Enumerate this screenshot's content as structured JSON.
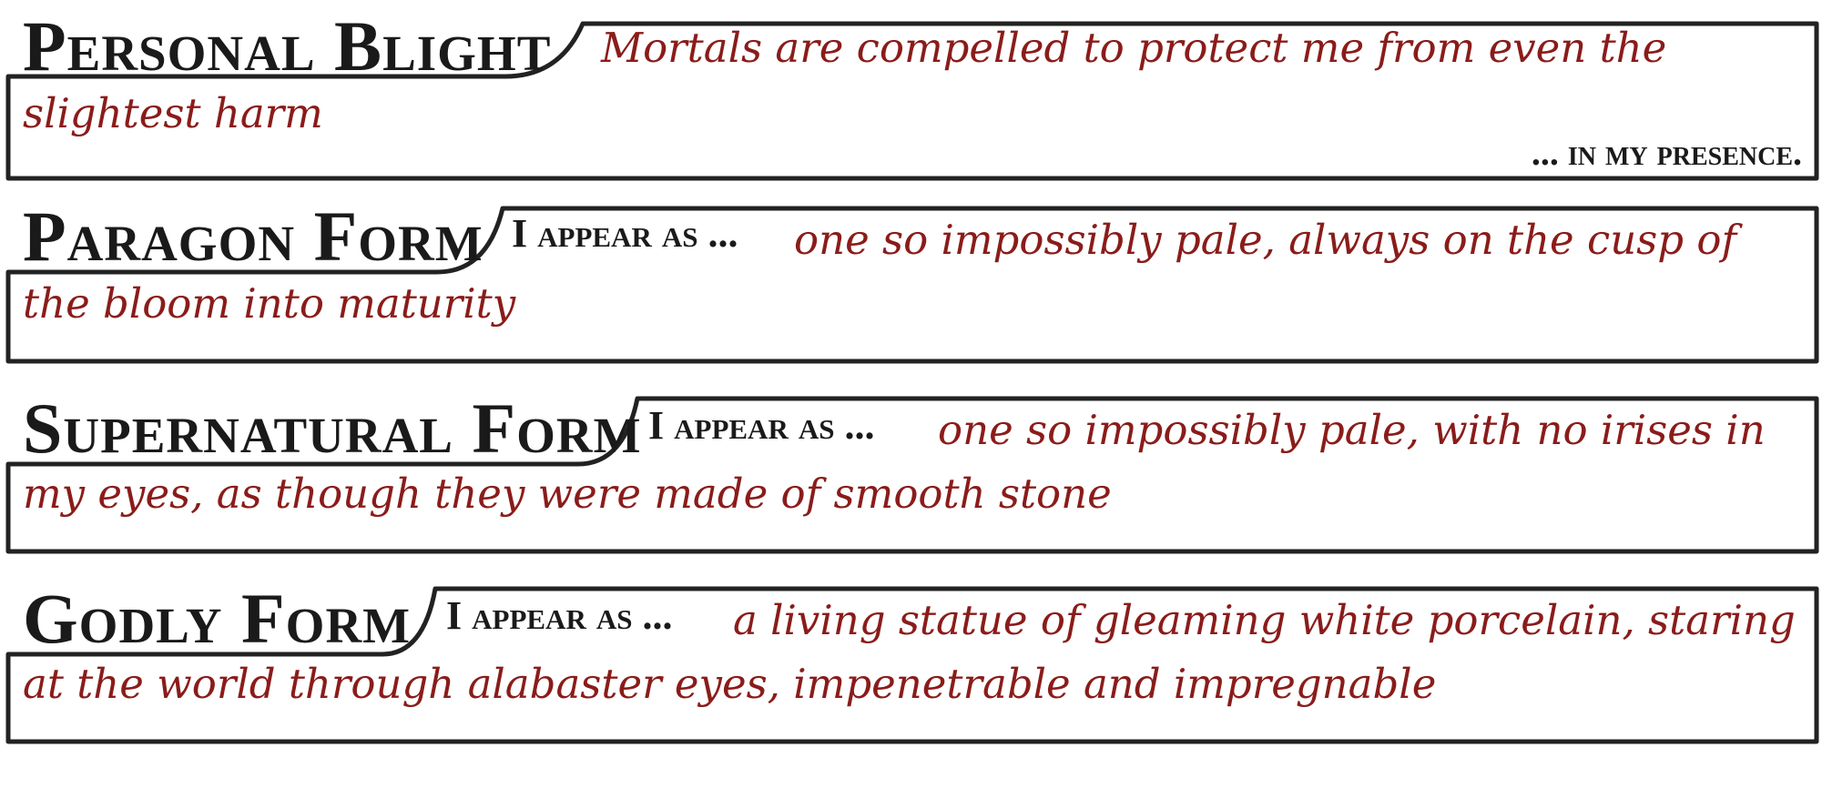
{
  "sections": [
    {
      "title": "Personal Blight",
      "prefix": "",
      "line1": "Mortals are compelled to protect me from even the",
      "line2": "slightest harm",
      "suffix": "... in my presence."
    },
    {
      "title": "Paragon Form",
      "prefix": "I appear as ...",
      "line1": "one so impossibly pale, always on the cusp of",
      "line2": "the bloom into maturity",
      "suffix": ""
    },
    {
      "title": "Supernatural Form",
      "prefix": "I appear as ...",
      "line1": "one so impossibly pale, with no irises in",
      "line2": "my eyes, as though they were made of smooth stone",
      "suffix": ""
    },
    {
      "title": "Godly Form",
      "prefix": "I appear as ...",
      "line1": "a living statue of gleaming white porcelain, staring",
      "line2": "at the world through alabaster eyes, impenetrable and impregnable",
      "suffix": ""
    }
  ]
}
